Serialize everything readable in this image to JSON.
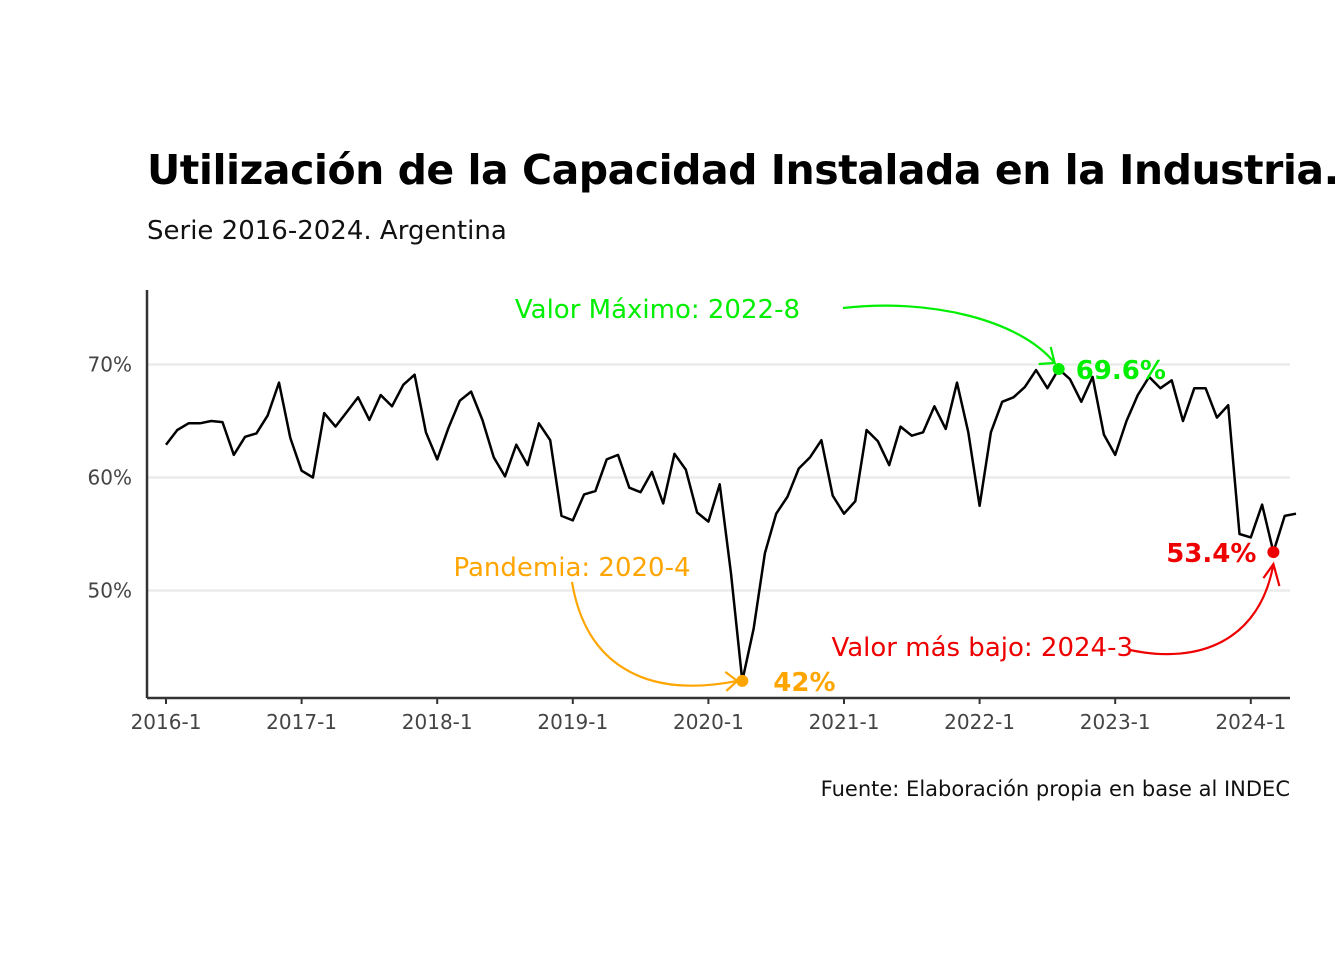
{
  "title": "Utilización de la Capacidad Instalada en la Industria.",
  "subtitle": "Serie 2016-2024. Argentina",
  "caption": "Fuente: Elaboración propia en base al INDEC",
  "colors": {
    "line": "#000000",
    "max": "#00ee00",
    "min": "#ee0000",
    "pandemic": "#ffa500",
    "grid": "#ebebeb",
    "axis": "#333333"
  },
  "chart_data": {
    "type": "line",
    "title": "Utilización de la Capacidad Instalada en la Industria.",
    "subtitle": "Serie 2016-2024. Argentina",
    "xlabel": "",
    "ylabel": "",
    "ylim": [
      40.5,
      76.5
    ],
    "yticks": [
      50,
      60,
      70
    ],
    "ytick_labels": [
      "50%",
      "60%",
      "70%"
    ],
    "xtick_labels": [
      "2016-1",
      "2017-1",
      "2018-1",
      "2019-1",
      "2020-1",
      "2021-1",
      "2022-1",
      "2023-1",
      "2024-1"
    ],
    "xtick_index": [
      0,
      12,
      24,
      36,
      48,
      60,
      72,
      84,
      96
    ],
    "grid": true,
    "series": [
      {
        "start": "2016-1",
        "values": [
          62.9,
          64.2,
          64.8,
          64.8,
          65.0,
          64.9,
          62.0,
          63.6,
          63.9,
          65.5,
          68.4,
          63.5,
          60.6,
          60.0,
          65.7,
          64.5,
          65.8,
          67.1,
          65.1,
          67.3,
          66.3,
          68.2,
          69.1,
          64.0,
          61.6,
          64.4,
          66.8,
          67.6,
          65.1,
          61.8,
          60.1,
          62.9,
          61.1,
          64.8,
          63.3,
          56.6,
          56.2,
          58.5,
          58.8,
          61.6,
          62.0,
          59.1,
          58.7,
          60.5,
          57.7,
          62.1,
          60.7,
          56.9,
          56.1,
          59.4,
          51.5,
          42.0,
          46.6,
          53.3,
          56.8,
          58.3,
          60.8,
          61.8,
          63.3,
          58.4,
          56.8,
          57.9,
          64.2,
          63.2,
          61.1,
          64.5,
          63.7,
          64.0,
          66.3,
          64.3,
          68.4,
          64.0,
          57.5,
          64.0,
          66.7,
          67.1,
          68.0,
          69.5,
          67.9,
          69.6,
          68.7,
          66.7,
          68.9,
          63.8,
          62.0,
          65.0,
          67.3,
          68.9,
          67.9,
          68.6,
          65.0,
          67.9,
          67.9,
          65.3,
          66.4,
          55.0,
          54.7,
          57.6,
          53.4,
          56.6,
          56.8
        ]
      }
    ],
    "highlights": [
      {
        "key": "max",
        "period": "2022-8",
        "value": 69.6,
        "label": "69.6%",
        "annotation": "Valor Máximo: 2022-8"
      },
      {
        "key": "pandemic",
        "period": "2020-4",
        "value": 42.0,
        "label": "42%",
        "annotation": "Pandemia: 2020-4"
      },
      {
        "key": "min",
        "period": "2024-3",
        "value": 53.4,
        "label": "53.4%",
        "annotation": "Valor más bajo: 2024-3"
      }
    ]
  }
}
